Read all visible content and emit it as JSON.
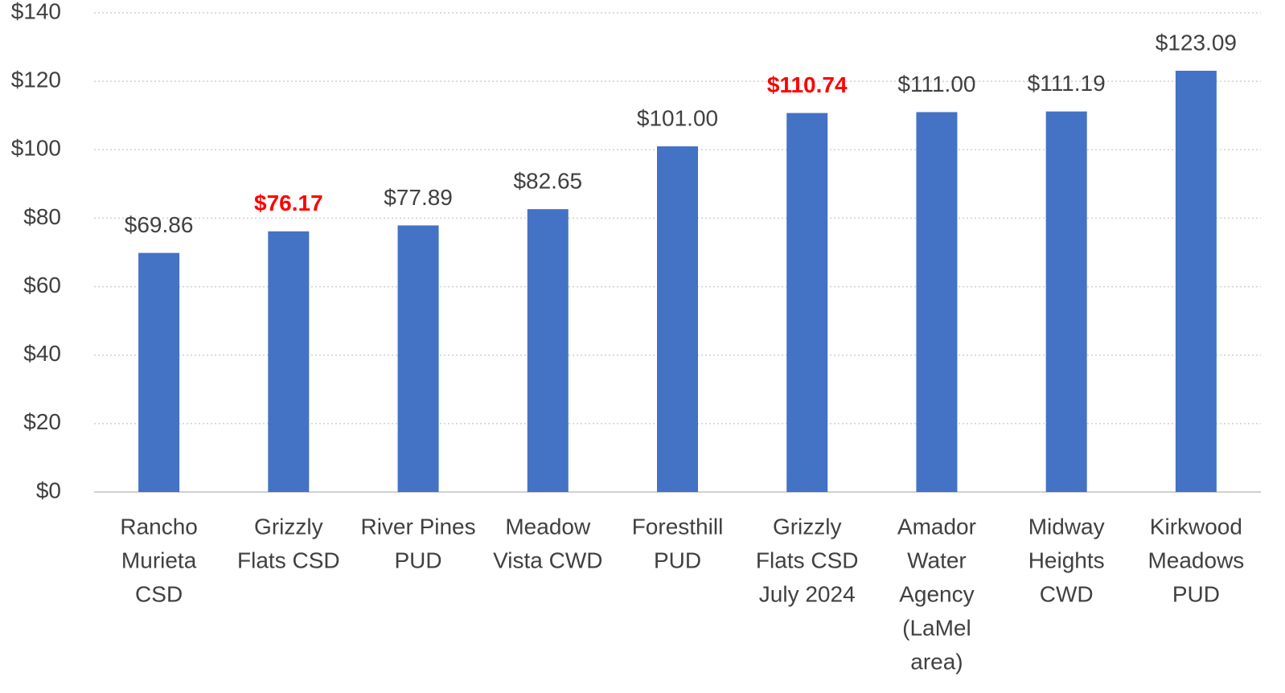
{
  "chart_data": {
    "type": "bar",
    "categories": [
      [
        "Rancho",
        "Murieta",
        "CSD"
      ],
      [
        "Grizzly",
        "Flats CSD"
      ],
      [
        "River Pines",
        "PUD"
      ],
      [
        "Meadow",
        "Vista CWD"
      ],
      [
        "Foresthill",
        "PUD"
      ],
      [
        "Grizzly",
        "Flats CSD",
        "July 2024"
      ],
      [
        "Amador",
        "Water",
        "Agency",
        "(LaMel",
        "area)"
      ],
      [
        "Midway",
        "Heights",
        "CWD"
      ],
      [
        "Kirkwood",
        "Meadows",
        "PUD"
      ]
    ],
    "values": [
      69.86,
      76.17,
      77.89,
      82.65,
      101.0,
      110.74,
      111.0,
      111.19,
      123.09
    ],
    "value_labels": [
      "$69.86",
      "$76.17",
      "$77.89",
      "$82.65",
      "$101.00",
      "$110.74",
      "$111.00",
      "$111.19",
      "$123.09"
    ],
    "value_label_colors": [
      "#404040",
      "#ff0000",
      "#404040",
      "#404040",
      "#404040",
      "#ff0000",
      "#404040",
      "#404040",
      "#404040"
    ],
    "value_label_bold": [
      false,
      true,
      false,
      false,
      false,
      true,
      false,
      false,
      false
    ],
    "color": "#4472c4",
    "ylim": [
      0,
      140
    ],
    "yticks": [
      {
        "value": 0,
        "label": "$0"
      },
      {
        "value": 20,
        "label": "$20"
      },
      {
        "value": 40,
        "label": "$40"
      },
      {
        "value": 60,
        "label": "$60"
      },
      {
        "value": 80,
        "label": "$80"
      },
      {
        "value": 100,
        "label": "$100"
      },
      {
        "value": 120,
        "label": "$120"
      },
      {
        "value": 140,
        "label": "$140"
      }
    ],
    "grid": true
  }
}
